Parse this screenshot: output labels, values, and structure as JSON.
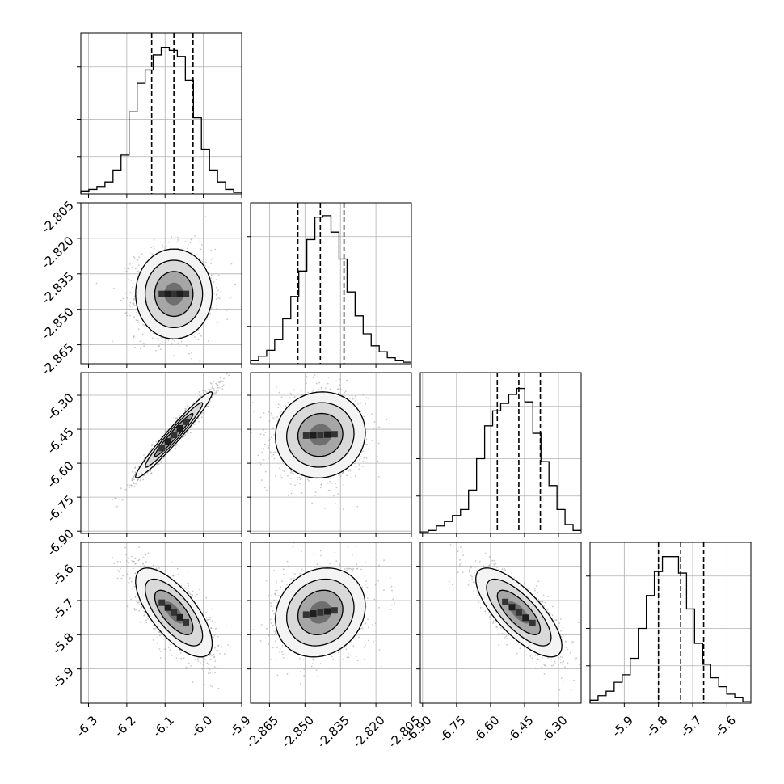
{
  "chart_data": {
    "type": "corner",
    "title": "",
    "parameters": [
      {
        "id": "p1",
        "label": "",
        "range": [
          -6.32,
          -5.9
        ],
        "ticks": [
          "-6.3",
          "-6.2",
          "-6.1",
          "-6.0",
          "-5.9"
        ],
        "tick_values": [
          -6.3,
          -6.2,
          -6.1,
          -6.0,
          -5.9
        ],
        "quantiles": [
          -6.135,
          -6.077,
          -6.027
        ],
        "histogram": {
          "bin_start": -6.32,
          "bin_width": 0.021,
          "counts": [
            0.02,
            0.03,
            0.05,
            0.08,
            0.16,
            0.26,
            0.55,
            0.74,
            0.83,
            0.93,
            0.98,
            0.96,
            0.92,
            0.76,
            0.51,
            0.3,
            0.16,
            0.08,
            0.03,
            0.01
          ]
        }
      },
      {
        "id": "p2",
        "label": "",
        "range": [
          -2.873,
          -2.805
        ],
        "ticks": [
          "-2.865",
          "-2.850",
          "-2.835",
          "-2.820",
          "-2.805"
        ],
        "tick_values": [
          -2.865,
          -2.85,
          -2.835,
          -2.82,
          -2.805
        ],
        "quantiles": [
          -2.853,
          -2.8435,
          -2.8335
        ],
        "histogram": {
          "bin_start": -2.873,
          "bin_width": 0.0034,
          "counts": [
            0.02,
            0.05,
            0.09,
            0.16,
            0.3,
            0.45,
            0.62,
            0.83,
            0.98,
            0.99,
            0.88,
            0.7,
            0.48,
            0.32,
            0.2,
            0.12,
            0.08,
            0.04,
            0.02,
            0.01
          ]
        }
      },
      {
        "id": "p3",
        "label": "",
        "range": [
          -6.91,
          -6.2
        ],
        "ticks": [
          "-6.90",
          "-6.75",
          "-6.60",
          "-6.45",
          "-6.30"
        ],
        "tick_values": [
          -6.9,
          -6.75,
          -6.6,
          -6.45,
          -6.3
        ],
        "quantiles": [
          -6.57,
          -6.475,
          -6.38
        ],
        "histogram": {
          "bin_start": -6.91,
          "bin_width": 0.0355,
          "counts": [
            0.01,
            0.02,
            0.05,
            0.08,
            0.12,
            0.16,
            0.29,
            0.5,
            0.72,
            0.82,
            0.87,
            0.93,
            0.97,
            0.88,
            0.67,
            0.48,
            0.32,
            0.16,
            0.06,
            0.02
          ]
        }
      },
      {
        "id": "p4",
        "label": "",
        "range": [
          -6.0,
          -5.53
        ],
        "ticks": [
          "-5.9",
          "-5.8",
          "-5.7",
          "-5.6"
        ],
        "tick_values": [
          -5.9,
          -5.8,
          -5.7,
          -5.6
        ],
        "quantiles": [
          -5.8,
          -5.735,
          -5.668
        ],
        "histogram": {
          "bin_start": -6.0,
          "bin_width": 0.0235,
          "counts": [
            0.02,
            0.05,
            0.08,
            0.14,
            0.19,
            0.3,
            0.5,
            0.72,
            0.88,
            0.98,
            0.98,
            0.87,
            0.63,
            0.4,
            0.26,
            0.17,
            0.11,
            0.06,
            0.04,
            0.01
          ]
        }
      }
    ],
    "pairs": [
      {
        "x": "p1",
        "y": "p2",
        "mean": [
          -6.077,
          -2.8435
        ],
        "sd": [
          0.05,
          0.0095
        ],
        "rho": 0.0
      },
      {
        "x": "p1",
        "y": "p3",
        "mean": [
          -6.077,
          -6.475
        ],
        "sd": [
          0.05,
          0.095
        ],
        "rho": 0.97
      },
      {
        "x": "p2",
        "y": "p3",
        "mean": [
          -2.8435,
          -6.475
        ],
        "sd": [
          0.0095,
          0.095
        ],
        "rho": 0.05
      },
      {
        "x": "p1",
        "y": "p4",
        "mean": [
          -6.077,
          -5.735
        ],
        "sd": [
          0.05,
          0.065
        ],
        "rho": -0.7
      },
      {
        "x": "p2",
        "y": "p4",
        "mean": [
          -2.8435,
          -5.735
        ],
        "sd": [
          0.0095,
          0.065
        ],
        "rho": 0.15
      },
      {
        "x": "p3",
        "y": "p4",
        "mean": [
          -6.475,
          -5.735
        ],
        "sd": [
          0.095,
          0.065
        ],
        "rho": -0.75
      }
    ],
    "contour_levels_sigma": [
      0.5,
      1.0,
      1.5,
      2.0
    ],
    "grid": true,
    "legend": "none"
  }
}
